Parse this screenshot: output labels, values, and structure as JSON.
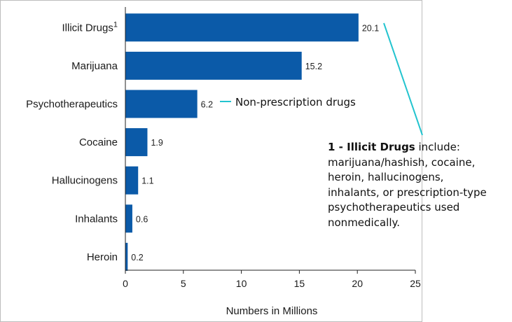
{
  "chart_data": {
    "type": "bar",
    "orientation": "horizontal",
    "categories": [
      "Illicit Drugs",
      "Marijuana",
      "Psychotherapeutics",
      "Cocaine",
      "Hallucinogens",
      "Inhalants",
      "Heroin"
    ],
    "category_superscripts": [
      "1",
      "",
      "",
      "",
      "",
      "",
      ""
    ],
    "values": [
      20.1,
      15.2,
      6.2,
      1.9,
      1.1,
      0.6,
      0.2
    ],
    "value_labels": [
      "20.1",
      "15.2",
      "6.2",
      "1.9",
      "1.1",
      "0.6",
      "0.2"
    ],
    "xlabel": "Numbers in Millions",
    "xlim": [
      0,
      25
    ],
    "xticks": [
      "0",
      "5",
      "10",
      "15",
      "20",
      "25"
    ],
    "grid": false,
    "bar_color": "#0b5aa8",
    "callout_color": "#23c4cf"
  },
  "annotations": {
    "psychotherapeutics_callout": "Non-prescription drugs",
    "footnote_bold": "1 - Illicit Drugs",
    "footnote_rest": " include: marijuana/hashish, cocaine, heroin, hallucinogens, inhalants, or prescription-type psychotherapeutics used nonmedically."
  }
}
